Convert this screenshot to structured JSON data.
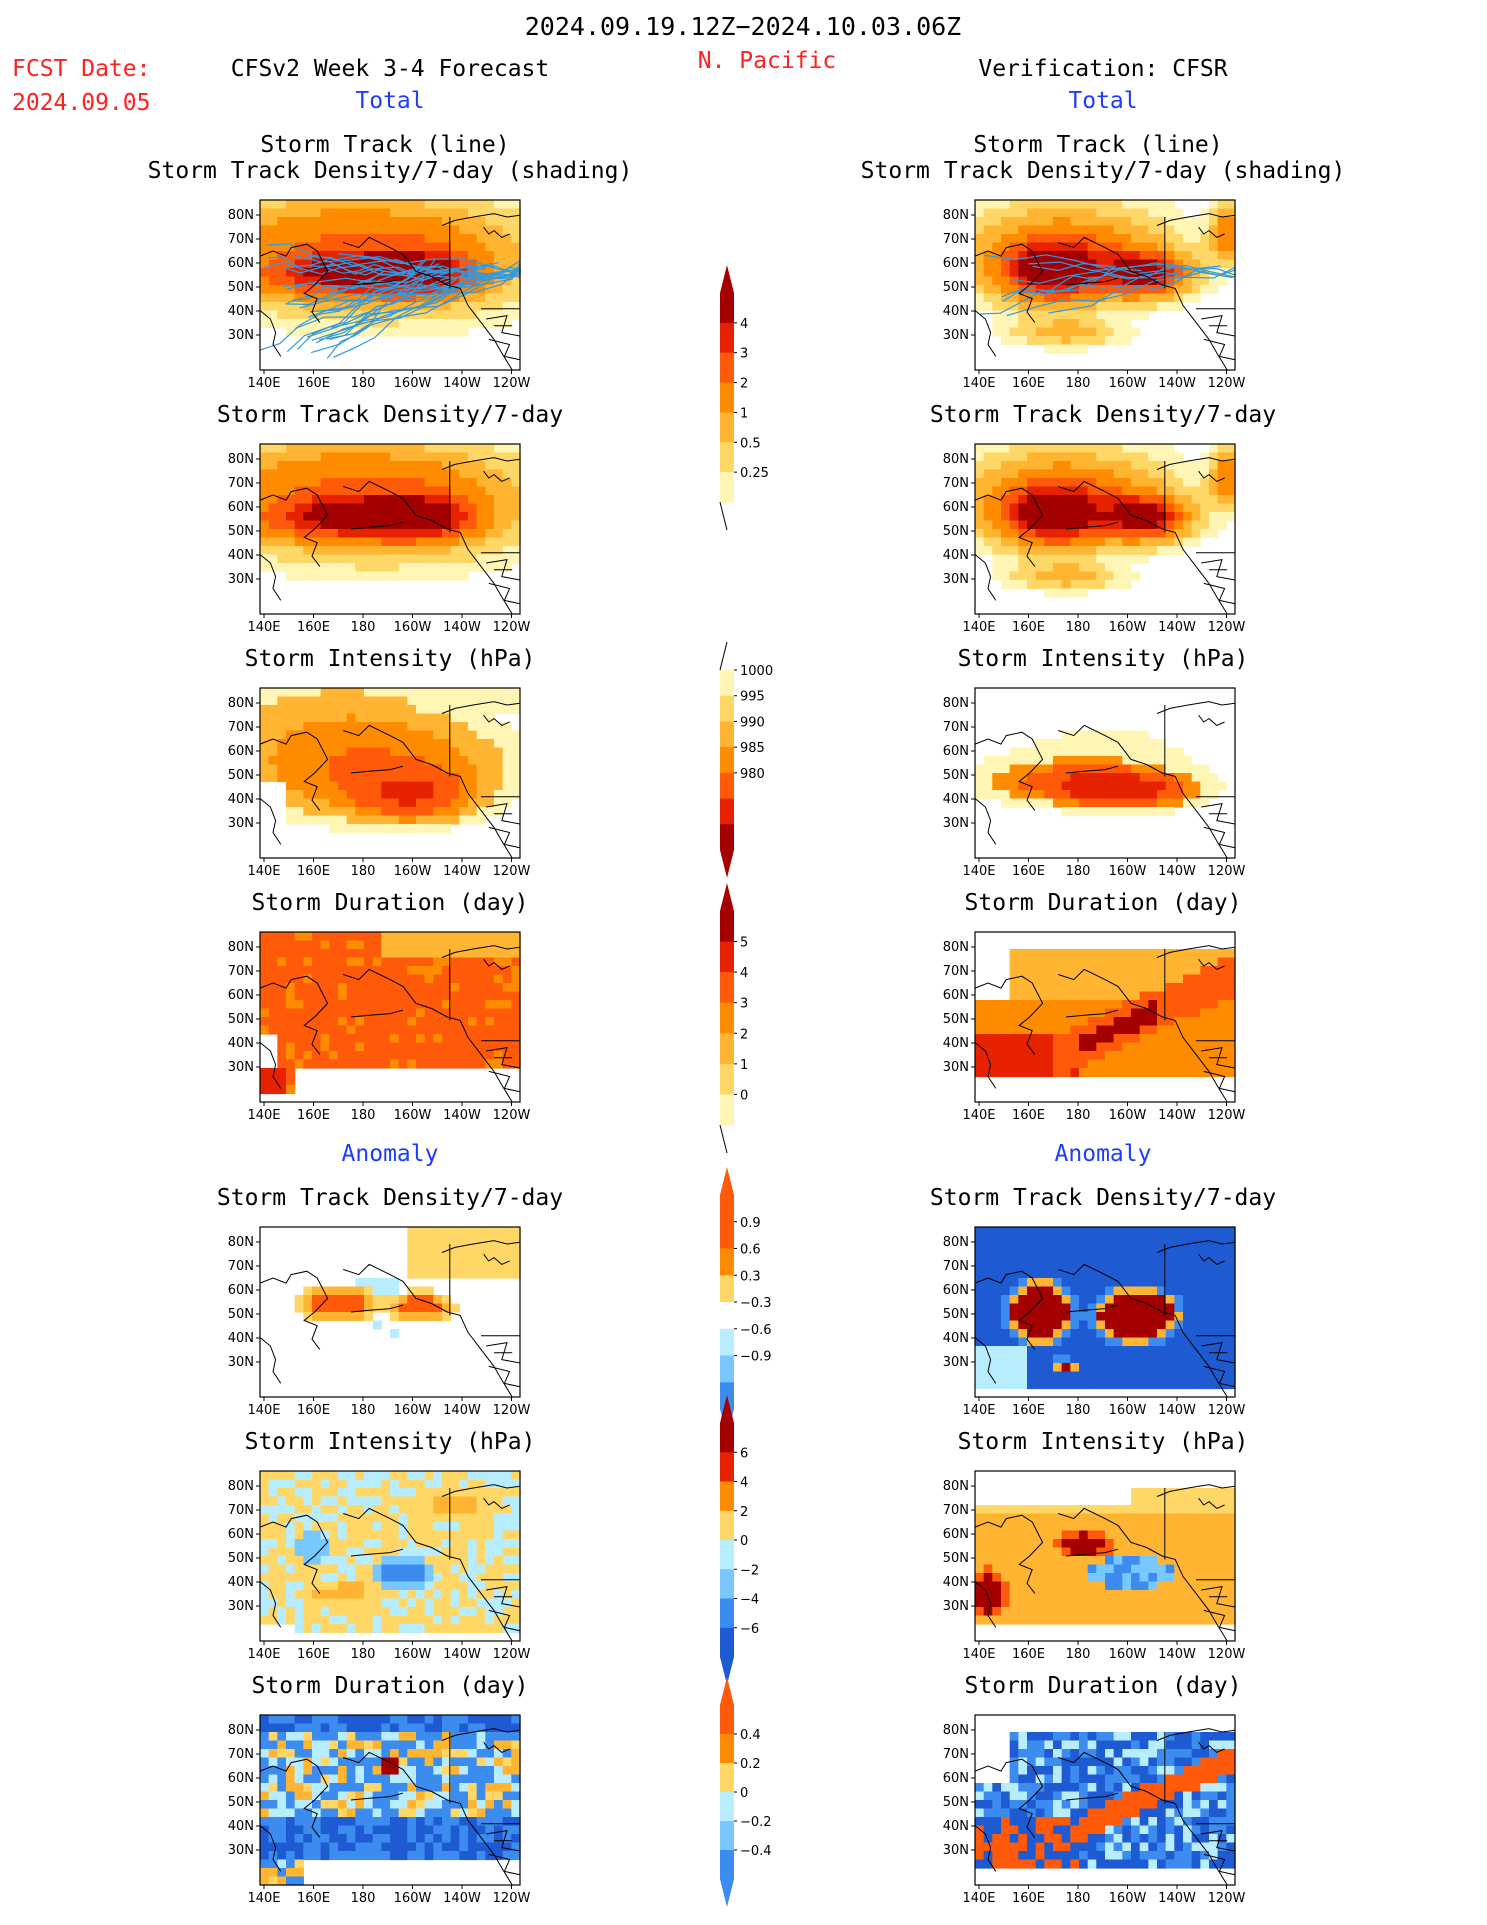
{
  "header": {
    "period": "2024.09.19.12Z−2024.10.03.06Z",
    "fcst_label": "FCST Date:",
    "fcst_date": "2024.09.05",
    "model": "CFSv2 Week 3-4 Forecast",
    "region": "N. Pacific",
    "verification": "Verification: CFSR",
    "total_left": "Total",
    "total_right": "Total",
    "anomaly_left": "Anomaly",
    "anomaly_right": "Anomaly"
  },
  "titles": {
    "track_line": "Storm Track (line)",
    "track_shading": "Storm Track Density/7-day (shading)",
    "density": "Storm Track Density/7-day",
    "intensity": "Storm Intensity (hPa)",
    "duration": "Storm Duration (day)"
  },
  "axes": {
    "lat_ticks": [
      "80N",
      "70N",
      "60N",
      "50N",
      "40N",
      "30N"
    ],
    "lon_ticks": [
      "140E",
      "160E",
      "180",
      "160W",
      "140W",
      "120W"
    ]
  },
  "colors": {
    "yellow_light": "#fff5b4",
    "yellow": "#ffd766",
    "orange_light": "#ffb532",
    "orange": "#ff8c00",
    "orange_dark": "#ff5a0a",
    "red": "#e62200",
    "red_dark": "#a50000",
    "blue_light": "#b8ecff",
    "blue": "#78c8ff",
    "blue_mid": "#3c8cf0",
    "blue_dark": "#1e5ad2",
    "track_line": "#3399dd"
  },
  "colorbars": [
    {
      "name": "density-total-colorbar",
      "labels": [
        "4",
        "3",
        "2",
        "1",
        "0.5",
        "0.25"
      ]
    },
    {
      "name": "intensity-total-colorbar",
      "labels": [
        "1000",
        "995",
        "990",
        "985",
        "980"
      ]
    },
    {
      "name": "duration-total-colorbar",
      "labels": [
        "5",
        "4",
        "3",
        "2",
        "1",
        "0"
      ]
    },
    {
      "name": "density-anomaly-colorbar",
      "labels": [
        "0.9",
        "0.6",
        "0.3",
        "−0.3",
        "−0.6",
        "−0.9"
      ]
    },
    {
      "name": "intensity-anomaly-colorbar",
      "labels": [
        "6",
        "4",
        "2",
        "0",
        "−2",
        "−4",
        "−6"
      ]
    },
    {
      "name": "duration-anomaly-colorbar",
      "labels": [
        "0.4",
        "0.2",
        "0",
        "−0.2",
        "−0.4"
      ]
    }
  ],
  "chart_data": [
    {
      "type": "heatmap",
      "panel": "forecast-total-track-line",
      "field": "storm track density + storm tracks",
      "units": "per 7-day",
      "lat_range": [
        "25N",
        "85N"
      ],
      "lon_range": [
        "140E",
        "120W"
      ],
      "color_levels": [
        0.25,
        0.5,
        1,
        2,
        3,
        4
      ],
      "max_region": "50N-60N, 160E-150W",
      "max_value_approx": 3.5
    },
    {
      "type": "heatmap",
      "panel": "verification-total-track-line",
      "field": "storm track density + storm tracks",
      "units": "per 7-day",
      "color_levels": [
        0.25,
        0.5,
        1,
        2,
        3,
        4
      ],
      "max_region": "55N-60N, 170E and 140W",
      "max_value_approx": 4
    },
    {
      "type": "heatmap",
      "panel": "forecast-total-density",
      "field": "storm track density",
      "units": "per 7-day",
      "color_levels": [
        0.25,
        0.5,
        1,
        2,
        3,
        4
      ],
      "max_value_approx": 3.5
    },
    {
      "type": "heatmap",
      "panel": "verification-total-density",
      "field": "storm track density",
      "units": "per 7-day",
      "color_levels": [
        0.25,
        0.5,
        1,
        2,
        3,
        4
      ],
      "max_value_approx": 4
    },
    {
      "type": "heatmap",
      "panel": "forecast-total-intensity",
      "field": "storm intensity",
      "units": "hPa",
      "color_levels": [
        1000,
        995,
        990,
        985,
        980
      ],
      "min_region": "45N-55N, 170W-140W",
      "min_value_approx": 985
    },
    {
      "type": "heatmap",
      "panel": "verification-total-intensity",
      "field": "storm intensity",
      "units": "hPa",
      "color_levels": [
        1000,
        995,
        990,
        985,
        980
      ],
      "min_value_approx": 985
    },
    {
      "type": "heatmap",
      "panel": "forecast-total-duration",
      "field": "storm duration",
      "units": "day",
      "color_levels": [
        0,
        1,
        2,
        3,
        4,
        5
      ],
      "typical_value_approx": 3.5
    },
    {
      "type": "heatmap",
      "panel": "verification-total-duration",
      "field": "storm duration",
      "units": "day",
      "color_levels": [
        0,
        1,
        2,
        3,
        4,
        5
      ],
      "max_value_approx": 5
    },
    {
      "type": "heatmap",
      "panel": "forecast-anomaly-density",
      "field": "storm track density anomaly",
      "units": "per 7-day",
      "color_levels": [
        -0.9,
        -0.6,
        -0.3,
        0.3,
        0.6,
        0.9
      ],
      "max_value_approx": 0.9
    },
    {
      "type": "heatmap",
      "panel": "verification-anomaly-density",
      "field": "storm track density anomaly",
      "units": "per 7-day",
      "color_levels": [
        -0.9,
        -0.6,
        -0.3,
        0.3,
        0.6,
        0.9
      ],
      "max_value_approx": 0.9,
      "min_value_approx": -0.9
    },
    {
      "type": "heatmap",
      "panel": "forecast-anomaly-intensity",
      "field": "storm intensity anomaly",
      "units": "hPa",
      "color_levels": [
        -6,
        -4,
        -2,
        0,
        2,
        4,
        6
      ],
      "range_approx": [
        -4,
        4
      ]
    },
    {
      "type": "heatmap",
      "panel": "verification-anomaly-intensity",
      "field": "storm intensity anomaly",
      "units": "hPa",
      "color_levels": [
        -6,
        -4,
        -2,
        0,
        2,
        4,
        6
      ],
      "range_approx": [
        -4,
        6
      ]
    },
    {
      "type": "heatmap",
      "panel": "forecast-anomaly-duration",
      "field": "storm duration anomaly",
      "units": "day",
      "color_levels": [
        -0.4,
        -0.2,
        0,
        0.2,
        0.4
      ],
      "range_approx": [
        -0.4,
        0.4
      ]
    },
    {
      "type": "heatmap",
      "panel": "verification-anomaly-duration",
      "field": "storm duration anomaly",
      "units": "day",
      "color_levels": [
        -0.4,
        -0.2,
        0,
        0.2,
        0.4
      ],
      "range_approx": [
        -0.4,
        0.4
      ]
    }
  ]
}
